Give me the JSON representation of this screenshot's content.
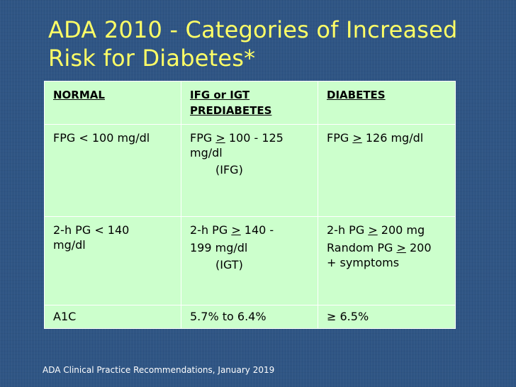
{
  "slide": {
    "title_line1": "ADA 2010 - Categories of Increased",
    "title_line2": "Risk for Diabetes*",
    "footnote": "ADA Clinical Practice Recommendations, January 2019",
    "colors": {
      "background": "#2f5584",
      "title": "#ffff66",
      "table_fill": "#ccffcc",
      "table_border": "#ffffff"
    }
  },
  "table": {
    "headers": {
      "normal": "NORMAL",
      "prediabetes_line1": "IFG or IGT",
      "prediabetes_line2": "PREDIABETES",
      "diabetes": "DIABETES"
    },
    "fpg": {
      "normal": "FPG < 100 mg/dl",
      "pre_prefix": "FPG ",
      "pre_symbol": ">",
      "pre_value": " 100 - 125",
      "pre_unit": "mg/dl",
      "pre_note": "(IFG)",
      "diab_prefix": "FPG ",
      "diab_symbol": ">",
      "diab_value": " 126 mg/dl"
    },
    "pg": {
      "normal_line1": "2-h PG < 140",
      "normal_line2": "mg/dl",
      "pre_prefix": "2-h PG ",
      "pre_symbol": ">",
      "pre_value": " 140 -",
      "pre_line2": "199 mg/dl",
      "pre_note": "(IGT)",
      "diab_prefix": "2-h PG ",
      "diab_symbol": ">",
      "diab_value": " 200 mg",
      "diab_random_prefix": "Random PG ",
      "diab_random_symbol": ">",
      "diab_random_value": " 200",
      "diab_random_line2": "+ symptoms"
    },
    "a1c": {
      "normal": "A1C",
      "prediabetes": "5.7% to 6.4%",
      "diabetes": "≥ 6.5%"
    }
  }
}
